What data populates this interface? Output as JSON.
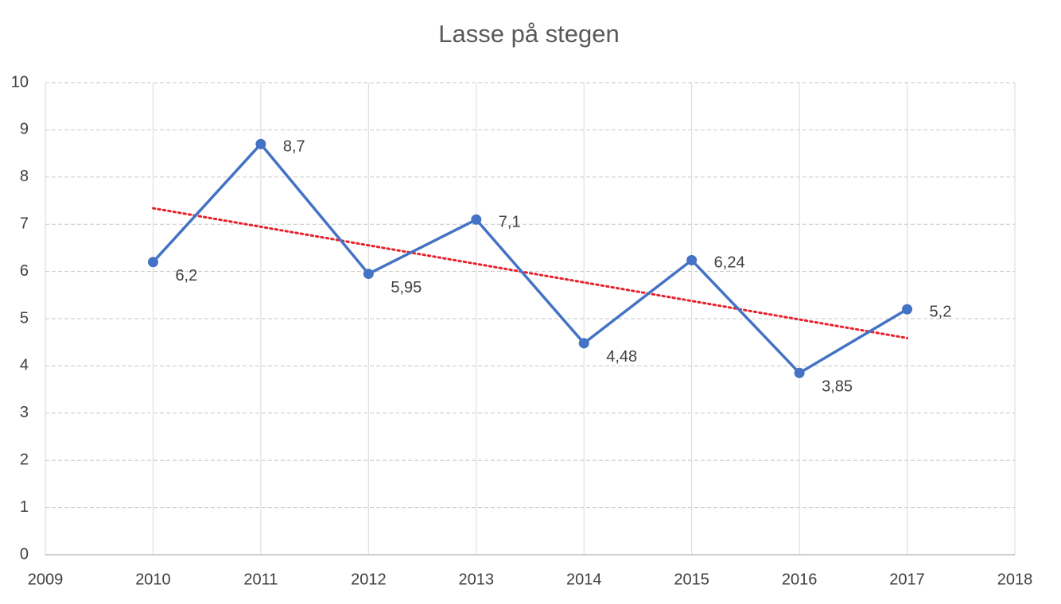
{
  "chart_data": {
    "type": "line",
    "title": "Lasse på stegen",
    "x": [
      2010,
      2011,
      2012,
      2013,
      2014,
      2015,
      2016,
      2017
    ],
    "series": [
      {
        "name": "Lasse",
        "color": "#4472c4",
        "values": [
          6.2,
          8.7,
          5.95,
          7.1,
          4.48,
          6.24,
          3.85,
          5.2
        ],
        "value_labels": [
          "6,2",
          "8,7",
          "5,95",
          "7,1",
          "4,48",
          "6,24",
          "3,85",
          "5,2"
        ]
      }
    ],
    "trendline": {
      "type": "linear",
      "color": "#e8212b",
      "style": "dotted"
    },
    "xlim": [
      2009,
      2018
    ],
    "xticks": [
      2009,
      2010,
      2011,
      2012,
      2013,
      2014,
      2015,
      2016,
      2017,
      2018
    ],
    "ylim": [
      0,
      10
    ],
    "yticks": [
      0,
      1,
      2,
      3,
      4,
      5,
      6,
      7,
      8,
      9,
      10
    ],
    "grid": true
  }
}
